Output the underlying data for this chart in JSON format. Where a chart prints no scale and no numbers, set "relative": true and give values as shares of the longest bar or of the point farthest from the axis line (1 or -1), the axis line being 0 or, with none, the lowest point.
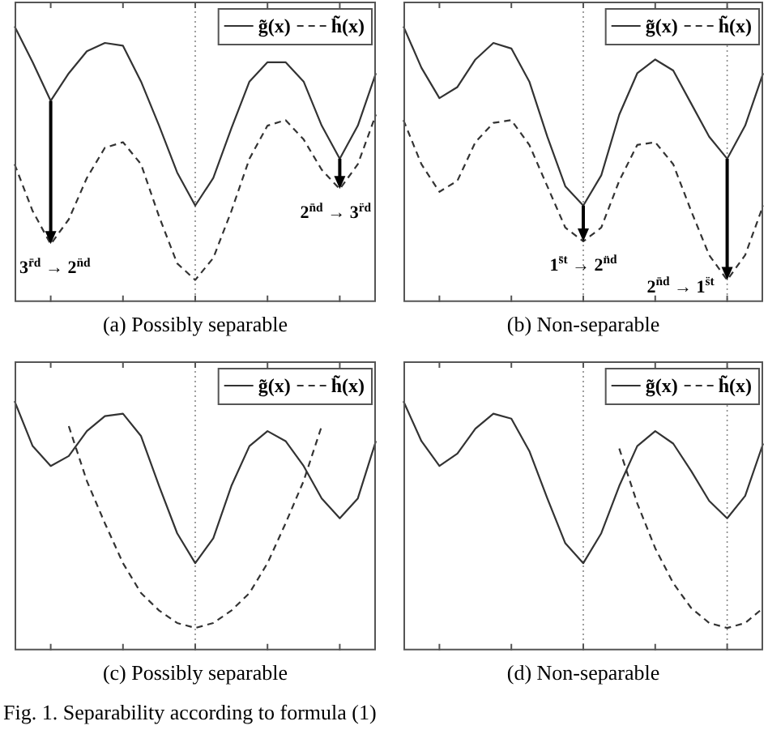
{
  "chart_data": [
    {
      "type": "line",
      "title": "(a) Possibly separable",
      "relative": true,
      "categories": [
        null,
        null,
        null,
        null,
        null,
        null,
        null,
        null,
        null,
        null,
        null,
        null,
        null,
        null,
        null,
        null,
        null,
        null,
        null,
        null,
        null
      ],
      "legend": "top right",
      "marker": "none",
      "series": [
        {
          "name": "g̃(x)",
          "color": "#333333",
          "line_style": "solid",
          "values": [
            1,
            0.87,
            0.73,
            0.83,
            0.91,
            0.94,
            0.93,
            0.8,
            0.64,
            0.47,
            0.35,
            0.45,
            0.63,
            0.8,
            0.87,
            0.87,
            0.8,
            0.64,
            0.52,
            0.64,
            0.83
          ]
        },
        {
          "name": "h̃(x)",
          "color": "#333333",
          "line_style": "dashed",
          "values": [
            0.5,
            0.33,
            0.21,
            0.3,
            0.45,
            0.56,
            0.58,
            0.5,
            0.31,
            0.14,
            0.08,
            0.16,
            0.33,
            0.52,
            0.64,
            0.66,
            0.59,
            0.48,
            0.41,
            0.5,
            0.68
          ]
        }
      ],
      "annotations": [
        "3$^{r̄d}$ → 2$^{n̈d}$",
        "2$^{n̄d}$ → 3$^{r̈d}$"
      ]
    },
    {
      "type": "line",
      "title": "(b) Non-separable",
      "relative": true,
      "categories": [
        null,
        null,
        null,
        null,
        null,
        null,
        null,
        null,
        null,
        null,
        null,
        null,
        null,
        null,
        null,
        null,
        null,
        null,
        null,
        null,
        null
      ],
      "legend": "top right",
      "marker": "none",
      "series": [
        {
          "name": "g̃(x)",
          "color": "#333333",
          "line_style": "solid",
          "values": [
            1,
            0.85,
            0.74,
            0.78,
            0.88,
            0.94,
            0.92,
            0.8,
            0.6,
            0.42,
            0.35,
            0.46,
            0.68,
            0.83,
            0.88,
            0.84,
            0.72,
            0.6,
            0.52,
            0.64,
            0.83
          ]
        },
        {
          "name": "h̃(x)",
          "color": "#333333",
          "line_style": "dashed",
          "values": [
            0.66,
            0.5,
            0.4,
            0.44,
            0.58,
            0.65,
            0.66,
            0.57,
            0.42,
            0.27,
            0.22,
            0.27,
            0.44,
            0.57,
            0.58,
            0.5,
            0.33,
            0.17,
            0.08,
            0.17,
            0.35
          ]
        }
      ],
      "annotations": [
        "1$^{s̄t}$ → 2$^{n̈d}$",
        "2$^{n̄d}$ → 1$^{s̈t}$"
      ]
    },
    {
      "type": "line",
      "title": "(c) Possibly separable",
      "relative": true,
      "categories": [
        null,
        null,
        null,
        null,
        null,
        null,
        null,
        null,
        null,
        null,
        null,
        null,
        null,
        null,
        null,
        null,
        null,
        null,
        null,
        null,
        null
      ],
      "legend": "top right",
      "marker": "none",
      "series": [
        {
          "name": "g̃(x)",
          "color": "#333333",
          "line_style": "solid",
          "values": [
            1,
            0.82,
            0.74,
            0.78,
            0.88,
            0.94,
            0.95,
            0.86,
            0.66,
            0.47,
            0.35,
            0.45,
            0.66,
            0.82,
            0.88,
            0.84,
            0.74,
            0.61,
            0.53,
            0.61,
            0.84
          ]
        },
        {
          "name": "h̃(x)",
          "color": "#333333",
          "line_style": "dashed",
          "values": [
            null,
            null,
            null,
            0.9,
            0.68,
            0.51,
            0.35,
            0.23,
            0.16,
            0.11,
            0.09,
            0.11,
            0.16,
            0.23,
            0.35,
            0.51,
            0.68,
            0.9,
            null,
            null,
            null
          ]
        }
      ],
      "annotations": [
        "Fig. 1.  Separability according to formula (1)"
      ]
    },
    {
      "type": "line",
      "title": "(d) Non-separable",
      "relative": true,
      "categories": [
        null,
        null,
        null,
        null,
        null,
        null,
        null,
        null,
        null,
        null,
        null,
        null,
        null,
        null,
        null,
        null,
        null,
        null,
        null,
        null,
        null
      ],
      "legend": "top right",
      "marker": "none",
      "series": [
        {
          "name": "g̃(x)",
          "color": "#333333",
          "line_style": "solid",
          "values": [
            1,
            0.84,
            0.74,
            0.79,
            0.89,
            0.95,
            0.93,
            0.8,
            0.61,
            0.43,
            0.35,
            0.47,
            0.66,
            0.82,
            0.88,
            0.83,
            0.72,
            0.6,
            0.53,
            0.62,
            0.83
          ]
        },
        {
          "name": "h̃(x)",
          "color": "#333333",
          "line_style": "dashed",
          "values": [
            null,
            null,
            null,
            null,
            null,
            null,
            null,
            null,
            null,
            null,
            null,
            null,
            0.81,
            0.59,
            0.41,
            0.27,
            0.17,
            0.11,
            0.09,
            0.11,
            0.17
          ]
        }
      ]
    }
  ]
}
